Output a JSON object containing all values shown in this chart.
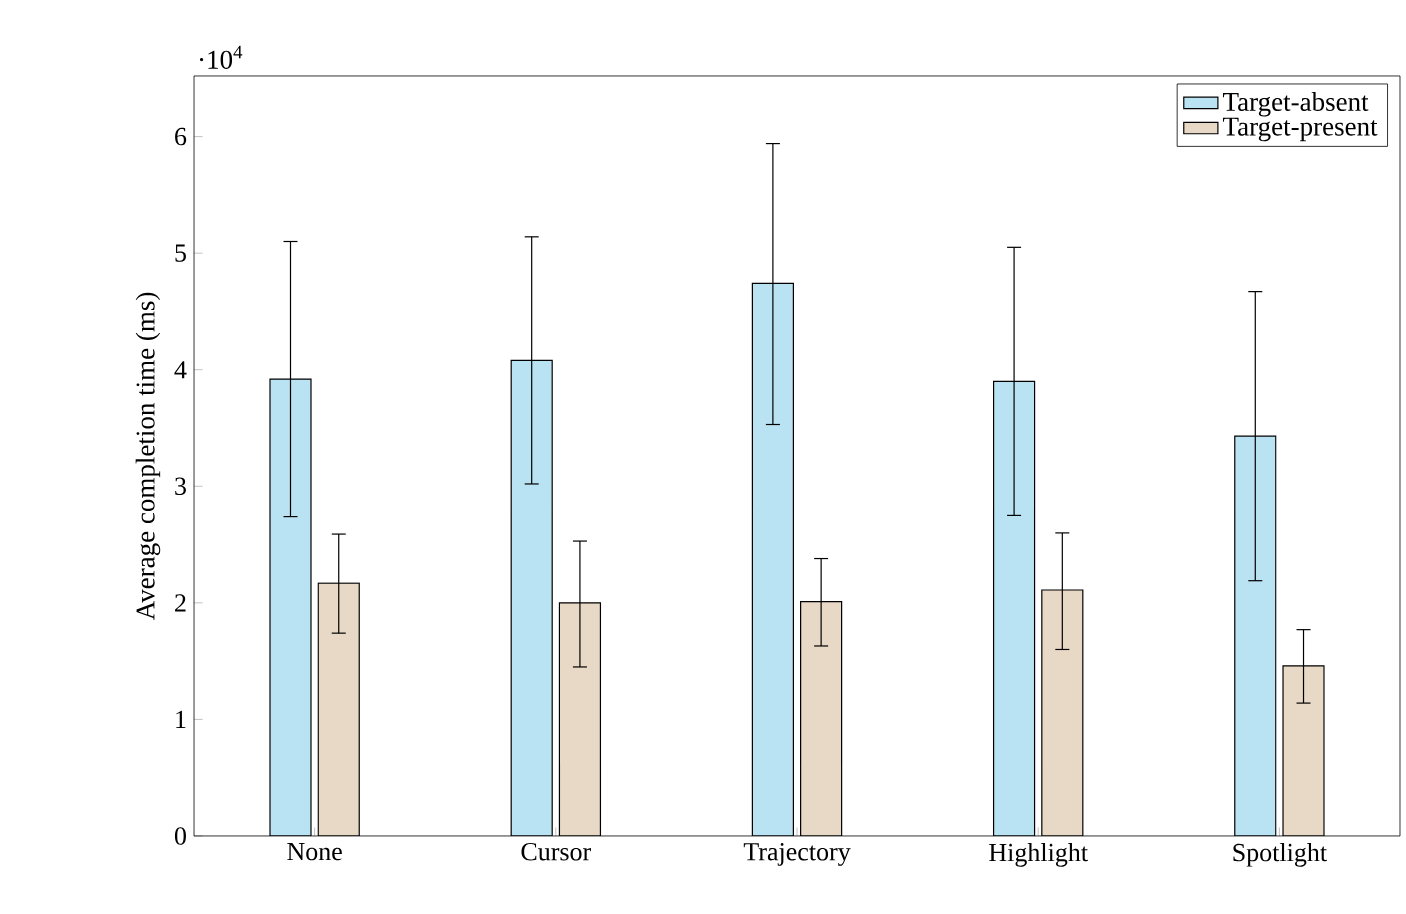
{
  "chart_data": {
    "type": "bar",
    "ylabel": "Average completion time (ms)",
    "annotations": [
      "·10$^{4}$"
    ],
    "categories": [
      "None",
      "Cursor",
      "Trajectory",
      "Highlight",
      "Spotlight"
    ],
    "series": [
      {
        "name": "Target-absent",
        "color": "#b9e2f2",
        "values": [
          3.92,
          4.08,
          4.74,
          3.9,
          3.43
        ],
        "errors": [
          [
            2.74,
            5.1
          ],
          [
            3.02,
            5.14
          ],
          [
            3.53,
            5.94
          ],
          [
            2.75,
            5.05
          ],
          [
            2.19,
            4.67
          ]
        ]
      },
      {
        "name": "Target-present",
        "color": "#e8d8c6",
        "values": [
          2.17,
          2.0,
          2.01,
          2.11,
          1.46
        ],
        "errors": [
          [
            1.74,
            2.59
          ],
          [
            1.45,
            2.53
          ],
          [
            1.63,
            2.38
          ],
          [
            1.6,
            2.6
          ],
          [
            1.14,
            1.77
          ]
        ]
      }
    ],
    "ylim": [
      0,
      6.52
    ],
    "yticks": [
      0,
      1,
      2,
      3,
      4,
      5,
      6
    ],
    "legend": "top right"
  }
}
